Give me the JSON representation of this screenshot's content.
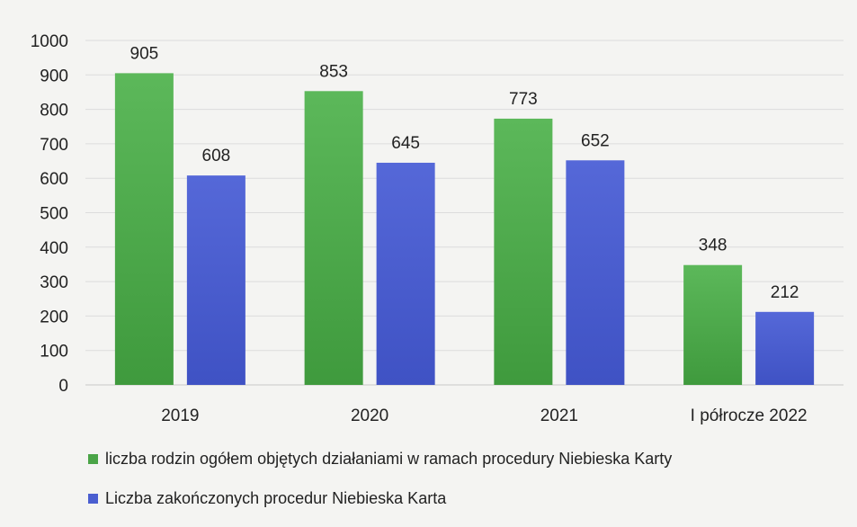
{
  "chart_data": {
    "type": "bar",
    "categories": [
      "2019",
      "2020",
      "2021",
      "I półrocze 2022"
    ],
    "series": [
      {
        "name": "liczba rodzin ogółem objętych działaniami w ramach procedury Niebieska Karty",
        "color": "#4aa447",
        "values": [
          905,
          853,
          773,
          348
        ]
      },
      {
        "name": "Liczba zakończonych procedur Niebieska Karta",
        "color": "#4a5ed0",
        "values": [
          608,
          645,
          652,
          212
        ]
      }
    ],
    "ylim": [
      0,
      1000
    ],
    "yticks": [
      0,
      100,
      200,
      300,
      400,
      500,
      600,
      700,
      800,
      900,
      1000
    ],
    "grid": true,
    "legend_position": "bottom-left"
  }
}
